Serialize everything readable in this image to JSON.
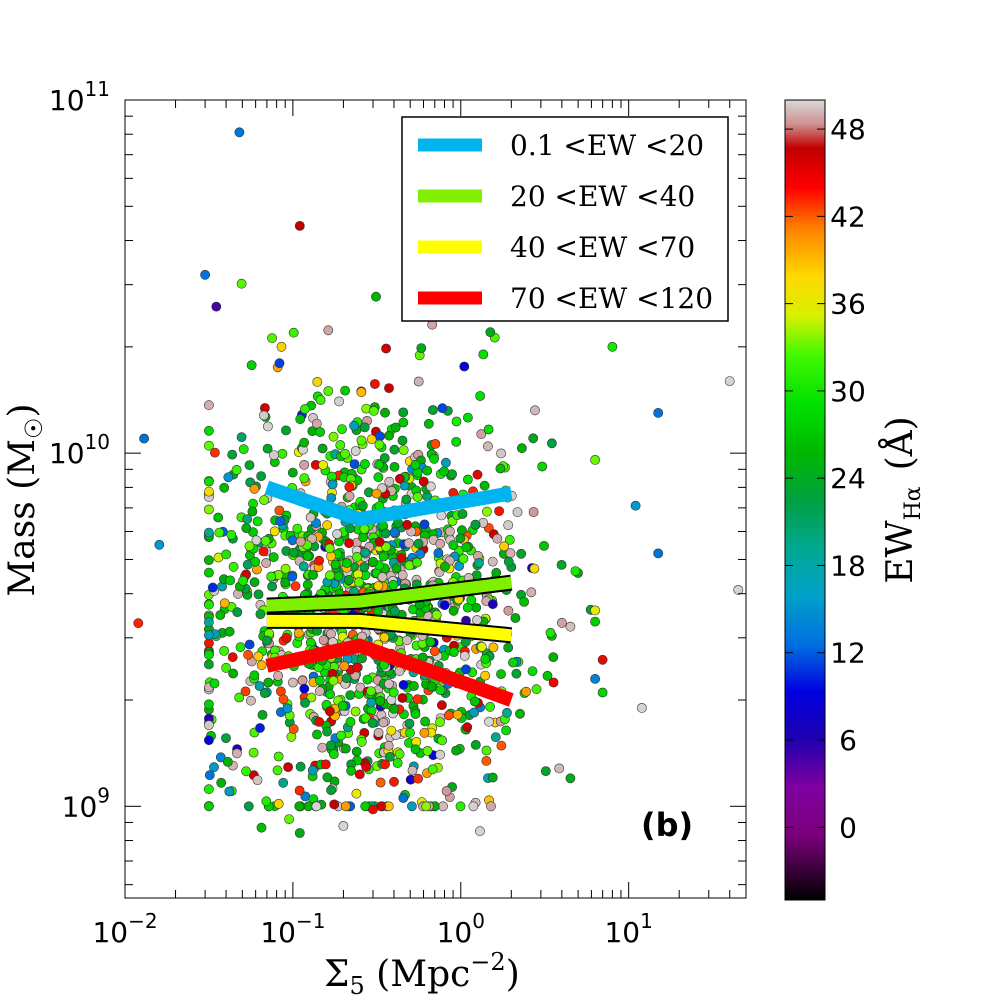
{
  "chart_data": {
    "type": "scatter",
    "title": "",
    "panel_label": "(b)",
    "xlabel": {
      "main": "Σ",
      "sub": "5",
      "rest": " (Mpc",
      "sup": "−2",
      "close": ")"
    },
    "ylabel": {
      "main": "Mass (M",
      "sub": "☉",
      "close": ")"
    },
    "xscale": "log",
    "yscale": "log",
    "xlim": [
      0.01,
      50
    ],
    "ylim": [
      550000000.0,
      100000000000.0
    ],
    "x_ticks": [
      {
        "value": 0.01,
        "base": "10",
        "exp": "−2"
      },
      {
        "value": 0.1,
        "base": "10",
        "exp": "−1"
      },
      {
        "value": 1,
        "base": "10",
        "exp": "0"
      },
      {
        "value": 10,
        "base": "10",
        "exp": "1"
      }
    ],
    "y_ticks": [
      {
        "value": 1000000000.0,
        "base": "10",
        "exp": "9"
      },
      {
        "value": 10000000000.0,
        "base": "10",
        "exp": "10"
      },
      {
        "value": 100000000000.0,
        "base": "10",
        "exp": "11"
      }
    ],
    "colorbar": {
      "label_main": "EW",
      "label_sub": "Hα",
      "label_unit": "(Å)",
      "range": [
        -5,
        50
      ],
      "ticks": [
        "0",
        "6",
        "12",
        "18",
        "24",
        "30",
        "36",
        "42",
        "48"
      ],
      "tick_values": [
        0,
        6,
        12,
        18,
        24,
        30,
        36,
        42,
        48
      ]
    },
    "legend": {
      "placement": "top-right",
      "entries": [
        {
          "label": "0.1 <EW <20",
          "color": "#00b4f0"
        },
        {
          "label": "20 <EW <40",
          "color": "#80f000"
        },
        {
          "label": "40 <EW <70",
          "color": "#ffff00"
        },
        {
          "label": "70 <EW <120",
          "color": "#ff0000"
        }
      ]
    },
    "series": [
      {
        "name": "0.1 <EW <20",
        "color": "#00b4f0",
        "outlined": false,
        "x": [
          0.07,
          0.25,
          2.0
        ],
        "y": [
          8000000000.0,
          6500000000.0,
          7700000000.0
        ]
      },
      {
        "name": "20 <EW <40",
        "color": "#80f000",
        "outlined": true,
        "x": [
          0.07,
          0.25,
          2.0
        ],
        "y": [
          3700000000.0,
          3800000000.0,
          4300000000.0
        ]
      },
      {
        "name": "40 <EW <70",
        "color": "#ffff00",
        "outlined": true,
        "x": [
          0.07,
          0.25,
          2.0
        ],
        "y": [
          3350000000.0,
          3350000000.0,
          3050000000.0
        ]
      },
      {
        "name": "70 <EW <120",
        "color": "#ff0000",
        "outlined": false,
        "x": [
          0.07,
          0.25,
          2.0
        ],
        "y": [
          2500000000.0,
          2850000000.0,
          2000000000.0
        ]
      }
    ],
    "scatter_points": {
      "count": 1400,
      "x_log_mean": -0.55,
      "x_log_sd": 0.5,
      "y_log_mean": 9.58,
      "y_log_sd": 0.3,
      "seed": 12345
    },
    "scatter_outliers": [
      {
        "x": 0.048,
        "y": 81000000000.0,
        "ew": 10
      },
      {
        "x": 0.11,
        "y": 44000000000.0,
        "ew": 48
      },
      {
        "x": 0.013,
        "y": 11000000000.0,
        "ew": 10
      },
      {
        "x": 0.012,
        "y": 3300000000.0,
        "ew": 42
      },
      {
        "x": 40,
        "y": 16000000000.0,
        "ew": 50
      },
      {
        "x": 45,
        "y": 4100000000.0,
        "ew": 50
      },
      {
        "x": 15,
        "y": 13000000000.0,
        "ew": 10
      },
      {
        "x": 15,
        "y": 5200000000.0,
        "ew": 10
      },
      {
        "x": 11,
        "y": 7100000000.0,
        "ew": 12
      },
      {
        "x": 12,
        "y": 1900000000.0,
        "ew": 50
      },
      {
        "x": 0.095,
        "y": 920000000.0,
        "ew": 30
      },
      {
        "x": 0.065,
        "y": 870000000.0,
        "ew": 22
      },
      {
        "x": 1.3,
        "y": 850000000.0,
        "ew": 50
      },
      {
        "x": 0.11,
        "y": 840000000.0,
        "ew": 20
      },
      {
        "x": 0.3,
        "y": 980000000.0,
        "ew": 44
      },
      {
        "x": 0.2,
        "y": 880000000.0,
        "ew": 50
      },
      {
        "x": 7,
        "y": 2600000000.0,
        "ew": 44
      },
      {
        "x": 7,
        "y": 2100000000.0,
        "ew": 24
      },
      {
        "x": 4.5,
        "y": 1200000000.0,
        "ew": 20
      },
      {
        "x": 1.5,
        "y": 22000000000.0,
        "ew": 20
      },
      {
        "x": 8,
        "y": 20000000000.0,
        "ew": 26
      },
      {
        "x": 0.03,
        "y": 32000000000.0,
        "ew": 10
      },
      {
        "x": 0.035,
        "y": 26000000000.0,
        "ew": 2
      },
      {
        "x": 0.016,
        "y": 5500000000.0,
        "ew": 12
      }
    ]
  }
}
